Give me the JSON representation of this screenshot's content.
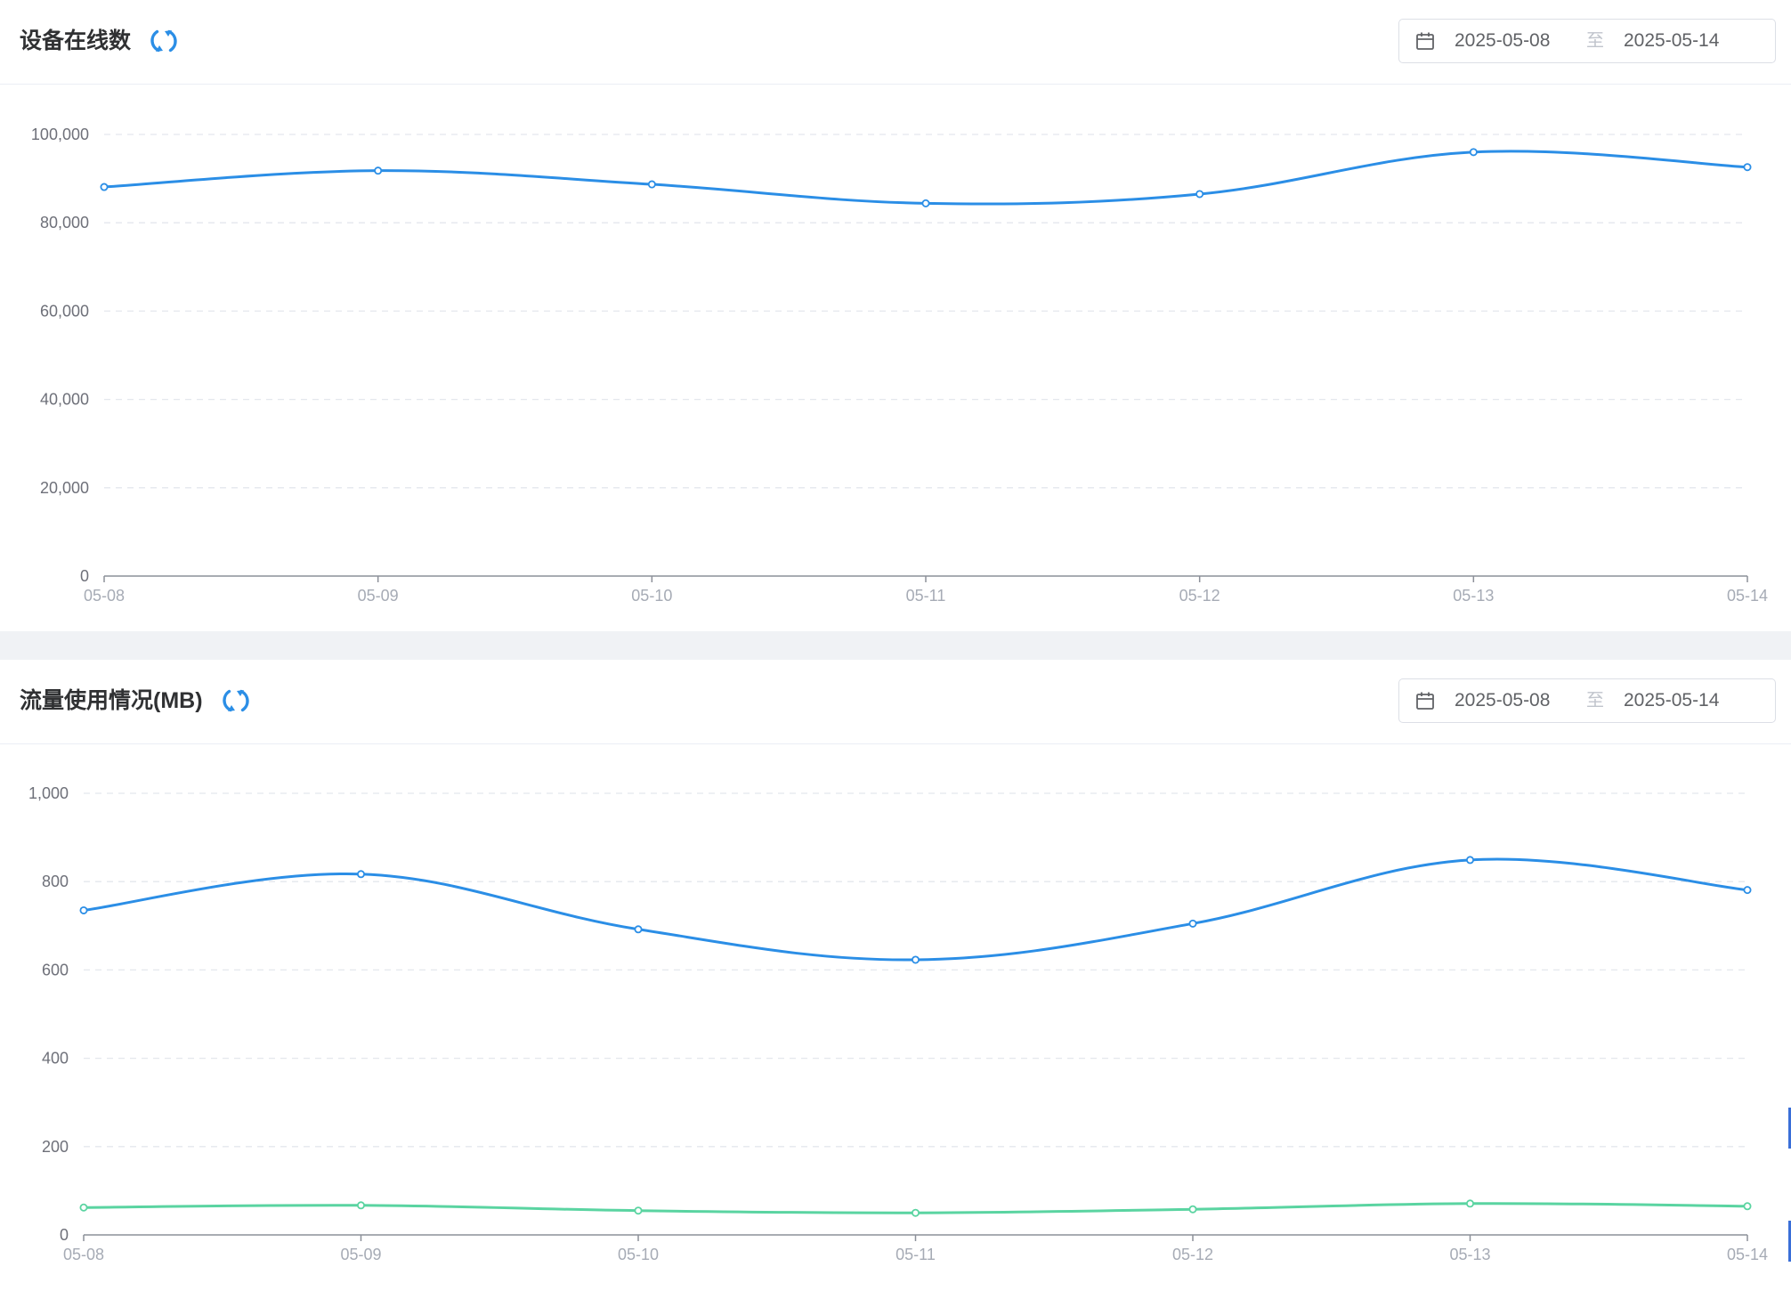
{
  "colors": {
    "primary_line": "#2b8ee6",
    "secondary_line": "#5ad4a1",
    "grid": "#e4e7ed",
    "axis": "#8c9099"
  },
  "panels": [
    {
      "title": "设备在线数",
      "refresh_icon": "refresh-icon",
      "calendar_icon": "calendar-icon",
      "date_range": {
        "start": "2025-05-08",
        "separator": "至",
        "end": "2025-05-14"
      }
    },
    {
      "title": "流量使用情况(MB)",
      "refresh_icon": "refresh-icon",
      "calendar_icon": "calendar-icon",
      "date_range": {
        "start": "2025-05-08",
        "separator": "至",
        "end": "2025-05-14"
      }
    }
  ],
  "chart_data": [
    {
      "type": "line",
      "smooth": true,
      "title": "设备在线数",
      "categories": [
        "05-08",
        "05-09",
        "05-10",
        "05-11",
        "05-12",
        "05-13",
        "05-14"
      ],
      "series": [
        {
          "values": [
            88100,
            91800,
            88700,
            84400,
            86500,
            96000,
            92600
          ],
          "color": "#2b8ee6"
        }
      ],
      "ylim": [
        0,
        100000
      ],
      "yticks": [
        0,
        20000,
        40000,
        60000,
        80000,
        100000
      ],
      "ytick_labels": [
        "0",
        "20,000",
        "40,000",
        "60,000",
        "80,000",
        "100,000"
      ],
      "grid": true,
      "legend": "none"
    },
    {
      "type": "line",
      "smooth": true,
      "title": "流量使用情况(MB)",
      "categories": [
        "05-08",
        "05-09",
        "05-10",
        "05-11",
        "05-12",
        "05-13",
        "05-14"
      ],
      "series": [
        {
          "values": [
            735,
            817,
            692,
            623,
            705,
            849,
            781
          ],
          "color": "#2b8ee6"
        },
        {
          "values": [
            62,
            67,
            55,
            50,
            58,
            71,
            65
          ],
          "color": "#5ad4a1"
        }
      ],
      "ylim": [
        0,
        1000
      ],
      "yticks": [
        0,
        200,
        400,
        600,
        800,
        1000
      ],
      "ytick_labels": [
        "0",
        "200",
        "400",
        "600",
        "800",
        "1,000"
      ],
      "grid": true,
      "legend": "none"
    }
  ]
}
